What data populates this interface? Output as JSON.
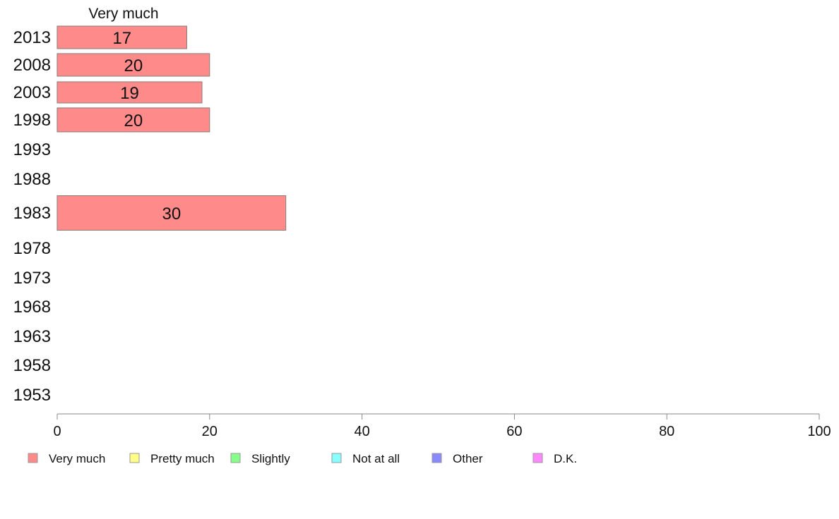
{
  "chart_data": {
    "type": "bar",
    "orientation": "horizontal",
    "stacked": true,
    "categories": [
      "2013",
      "2008",
      "2003",
      "1998",
      "1993",
      "1988",
      "1983",
      "1978",
      "1973",
      "1968",
      "1963",
      "1958",
      "1953"
    ],
    "series": [
      {
        "name": "Very much",
        "color": "#ff8a8a",
        "values": [
          17,
          20,
          19,
          20,
          null,
          null,
          30,
          null,
          null,
          null,
          null,
          null,
          null
        ]
      },
      {
        "name": "Pretty much",
        "color": "#ffff88",
        "values": [
          null,
          null,
          null,
          null,
          null,
          null,
          null,
          null,
          null,
          null,
          null,
          null,
          null
        ]
      },
      {
        "name": "Slightly",
        "color": "#88ff88",
        "values": [
          null,
          null,
          null,
          null,
          null,
          null,
          null,
          null,
          null,
          null,
          null,
          null,
          null
        ]
      },
      {
        "name": "Not at all",
        "color": "#88ffff",
        "values": [
          null,
          null,
          null,
          null,
          null,
          null,
          null,
          null,
          null,
          null,
          null,
          null,
          null
        ]
      },
      {
        "name": "Other",
        "color": "#8888ff",
        "values": [
          null,
          null,
          null,
          null,
          null,
          null,
          null,
          null,
          null,
          null,
          null,
          null,
          null
        ]
      },
      {
        "name": "D.K.",
        "color": "#ff88ff",
        "values": [
          null,
          null,
          null,
          null,
          null,
          null,
          null,
          null,
          null,
          null,
          null,
          null,
          null
        ]
      }
    ],
    "bar_labels": [
      "17",
      "20",
      "19",
      "20",
      "",
      "",
      "30",
      "",
      "",
      "",
      "",
      "",
      ""
    ],
    "series_header": "Very much",
    "xlim": [
      0,
      100
    ],
    "xticks": [
      0,
      20,
      40,
      60,
      80,
      100
    ],
    "grid": false,
    "legend_position": "bottom"
  }
}
